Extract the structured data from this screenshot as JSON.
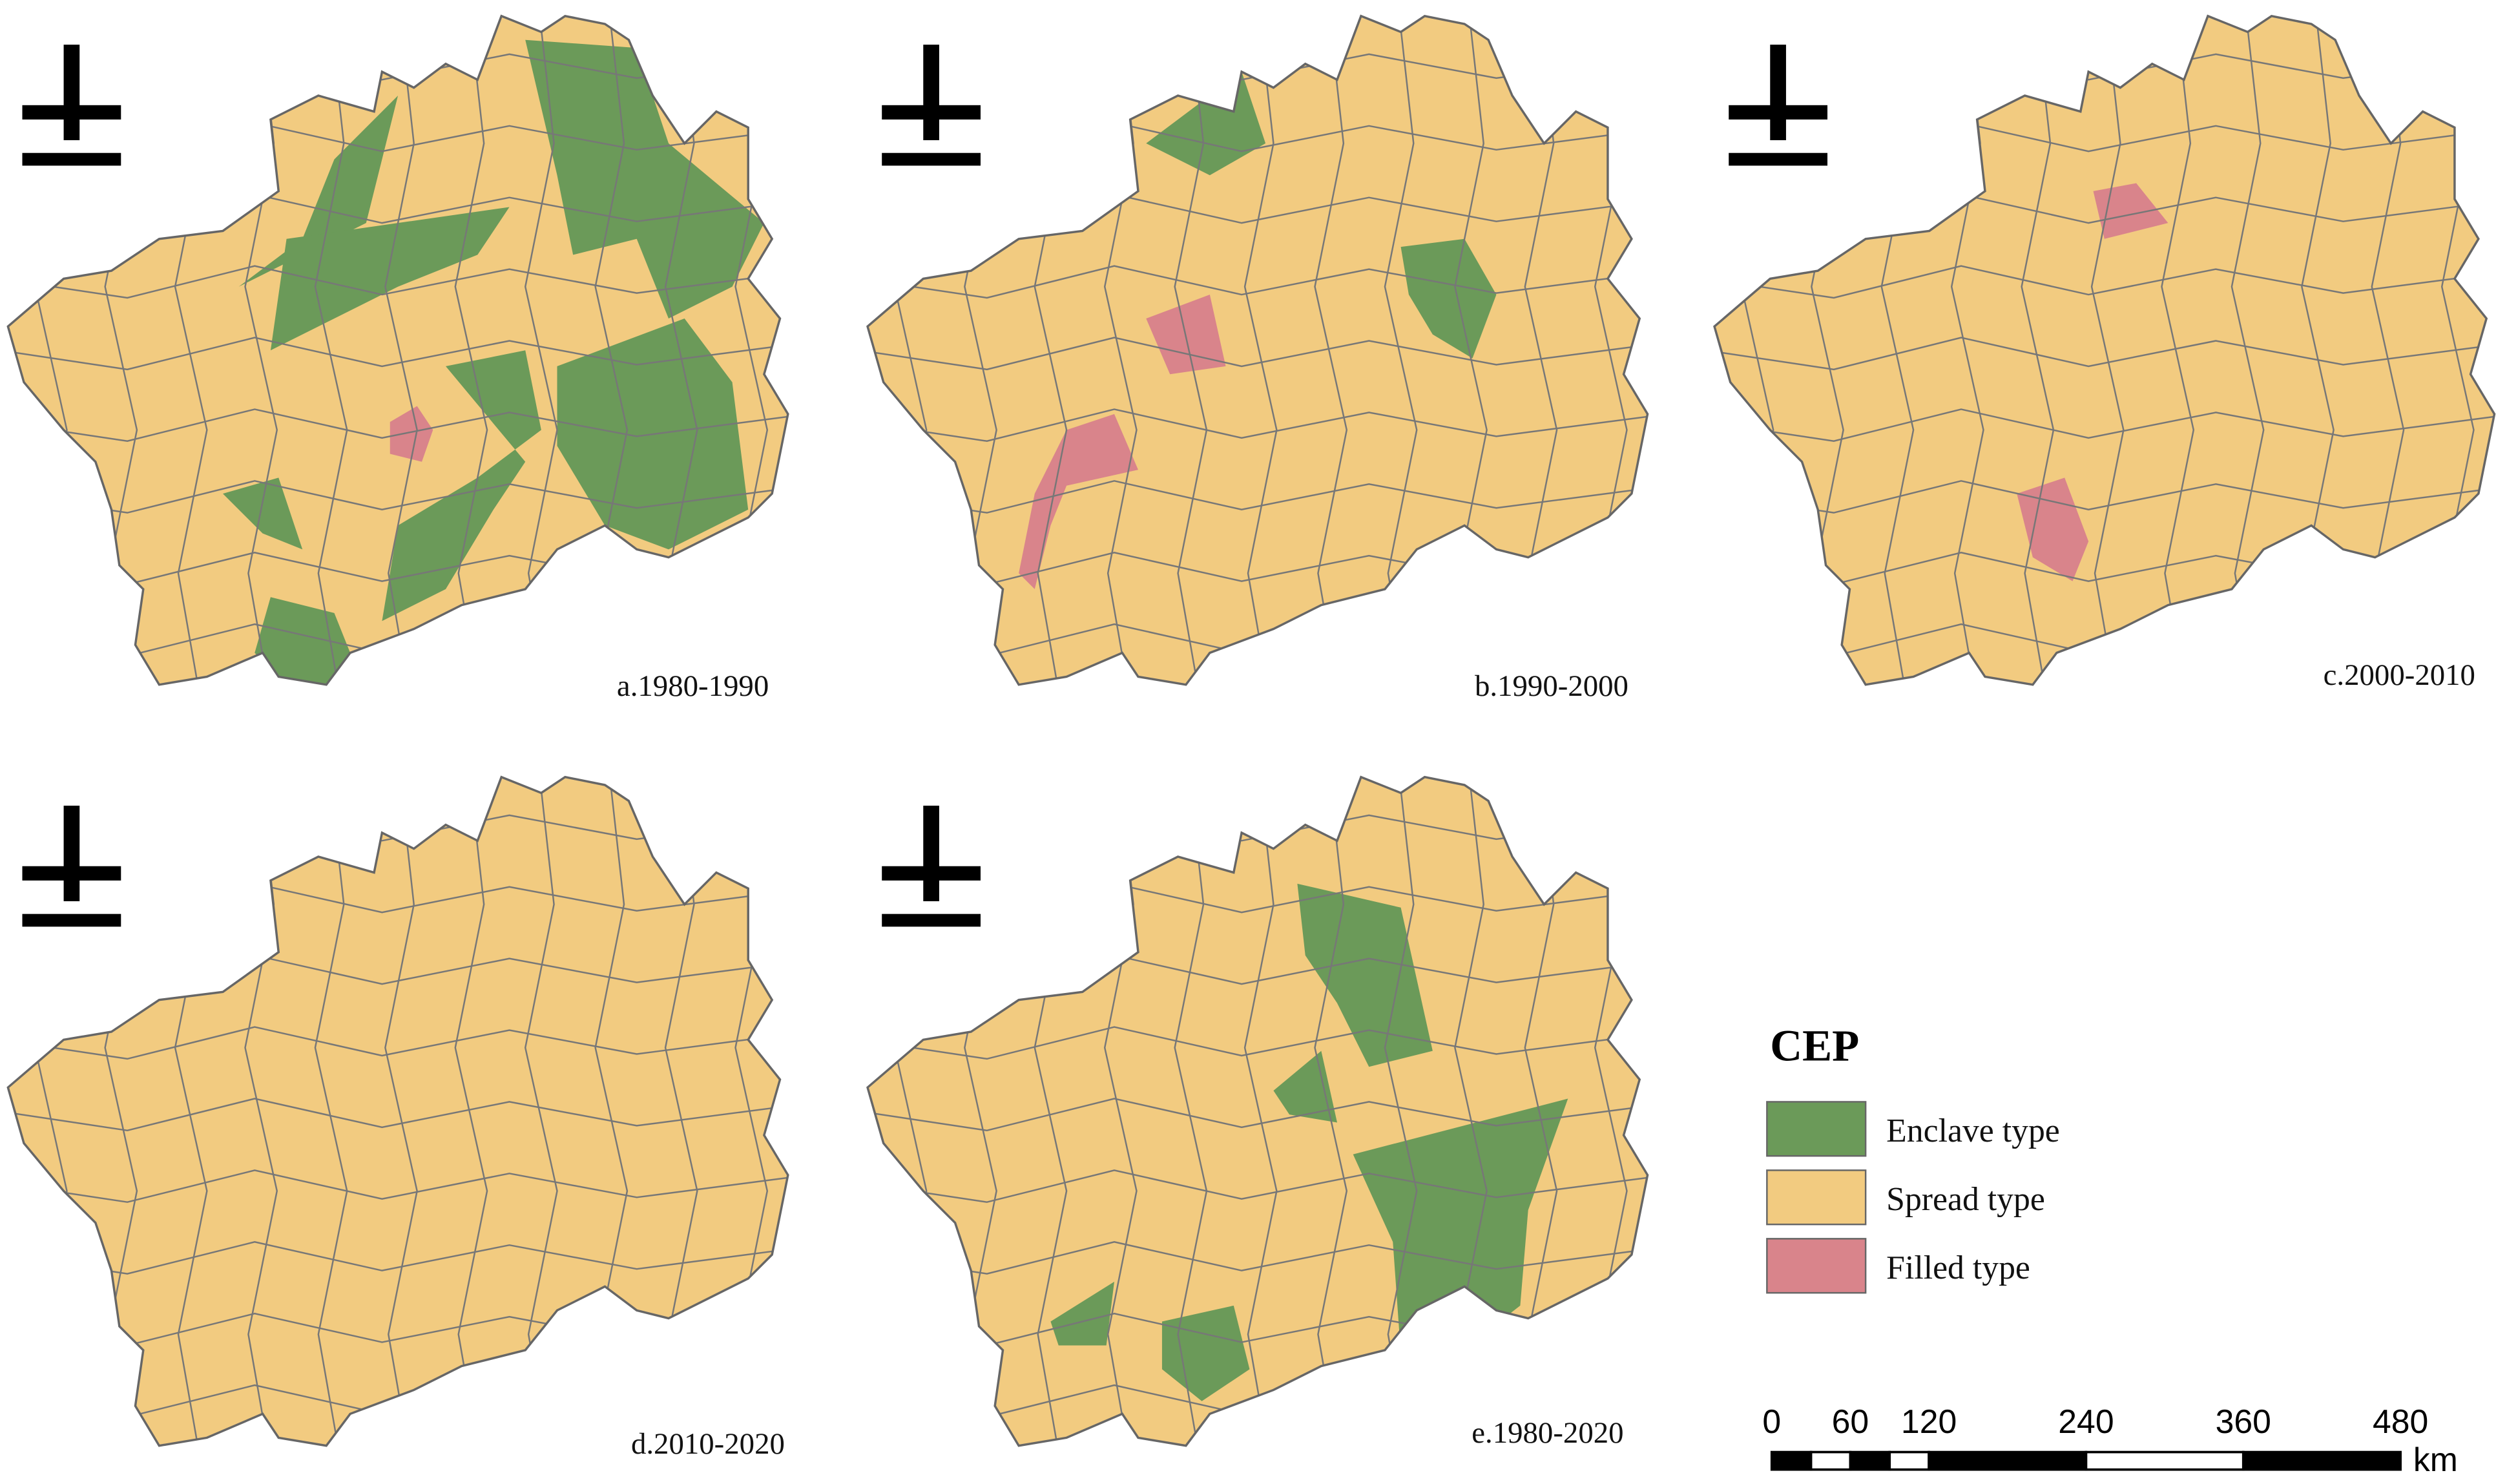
{
  "panels": [
    {
      "label": "a.1980-1990"
    },
    {
      "label": "b.1990-2000"
    },
    {
      "label": "c.2000-2010"
    },
    {
      "label": "d.2010-2020"
    },
    {
      "label": "e.1980-2020"
    }
  ],
  "legend": {
    "title": "CEP",
    "items": [
      {
        "name": "Enclave type",
        "color": "#6b9a59"
      },
      {
        "name": "Spread type",
        "color": "#f2cb80"
      },
      {
        "name": "Filled type",
        "color": "#d9848b"
      }
    ]
  },
  "scale_bar": {
    "ticks": [
      0,
      60,
      120,
      240,
      360,
      480
    ],
    "unit": "km"
  }
}
